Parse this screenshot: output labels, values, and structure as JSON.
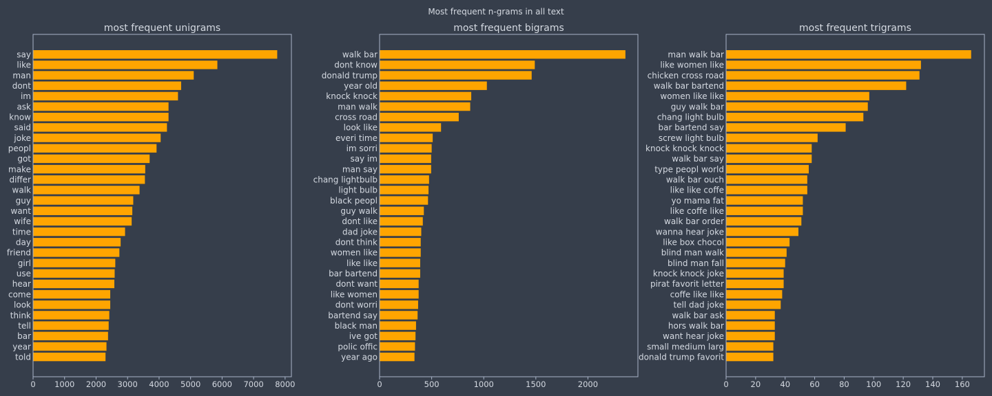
{
  "suptitle": "Most frequent n-grams in all text",
  "colors": {
    "background": "#363e4b",
    "bar": "#ffa500",
    "frame": "#a9b4c8",
    "text": "#d4d9e1"
  },
  "chart_data": [
    {
      "type": "bar",
      "orientation": "horizontal",
      "title": "most frequent unigrams",
      "xlim": [
        0,
        8200
      ],
      "xticks": [
        0,
        1000,
        2000,
        3000,
        4000,
        5000,
        6000,
        7000,
        8000
      ],
      "grid": false,
      "categories": [
        "say",
        "like",
        "man",
        "dont",
        "im",
        "ask",
        "know",
        "said",
        "joke",
        "peopl",
        "got",
        "make",
        "differ",
        "walk",
        "guy",
        "want",
        "wife",
        "time",
        "day",
        "friend",
        "girl",
        "use",
        "hear",
        "come",
        "look",
        "think",
        "tell",
        "bar",
        "year",
        "told"
      ],
      "values": [
        7750,
        5850,
        5100,
        4700,
        4600,
        4300,
        4300,
        4250,
        4050,
        3920,
        3700,
        3560,
        3550,
        3380,
        3180,
        3150,
        3130,
        2920,
        2780,
        2740,
        2610,
        2590,
        2580,
        2450,
        2450,
        2420,
        2400,
        2380,
        2330,
        2300
      ]
    },
    {
      "type": "bar",
      "orientation": "horizontal",
      "title": "most frequent bigrams",
      "xlim": [
        0,
        2480
      ],
      "xticks": [
        0,
        500,
        1000,
        1500,
        2000
      ],
      "grid": false,
      "categories": [
        "walk bar",
        "dont know",
        "donald trump",
        "year old",
        "knock knock",
        "man walk",
        "cross road",
        "look like",
        "everi time",
        "im sorri",
        "say im",
        "man say",
        "chang lightbulb",
        "light bulb",
        "black peopl",
        "guy walk",
        "dont like",
        "dad joke",
        "dont think",
        "women like",
        "like like",
        "bar bartend",
        "dont want",
        "like women",
        "dont worri",
        "bartend say",
        "black man",
        "ive got",
        "polic offic",
        "year ago"
      ],
      "values": [
        2360,
        1490,
        1460,
        1030,
        880,
        870,
        760,
        590,
        510,
        500,
        495,
        495,
        475,
        470,
        465,
        425,
        415,
        400,
        395,
        395,
        390,
        390,
        375,
        375,
        370,
        365,
        350,
        345,
        340,
        335
      ]
    },
    {
      "type": "bar",
      "orientation": "horizontal",
      "title": "most frequent trigrams",
      "xlim": [
        0,
        175
      ],
      "xticks": [
        0,
        20,
        40,
        60,
        80,
        100,
        120,
        140,
        160
      ],
      "grid": false,
      "categories": [
        "man walk bar",
        "like women like",
        "chicken cross road",
        "walk bar bartend",
        "women like like",
        "guy walk bar",
        "chang light bulb",
        "bar bartend say",
        "screw light bulb",
        "knock knock knock",
        "walk bar say",
        "type peopl world",
        "walk bar ouch",
        "like like coffe",
        "yo mama fat",
        "like coffe like",
        "walk bar order",
        "wanna hear joke",
        "like box chocol",
        "blind man walk",
        "blind man fall",
        "knock knock joke",
        "pirat favorit letter",
        "coffe like like",
        "tell dad joke",
        "walk bar ask",
        "hors walk bar",
        "want hear joke",
        "small medium larg",
        "donald trump favorit"
      ],
      "values": [
        166,
        132,
        131,
        122,
        97,
        96,
        93,
        81,
        62,
        58,
        58,
        56,
        55,
        55,
        52,
        52,
        51,
        49,
        43,
        41,
        40,
        39,
        39,
        38,
        37,
        33,
        33,
        33,
        32,
        32
      ]
    }
  ]
}
